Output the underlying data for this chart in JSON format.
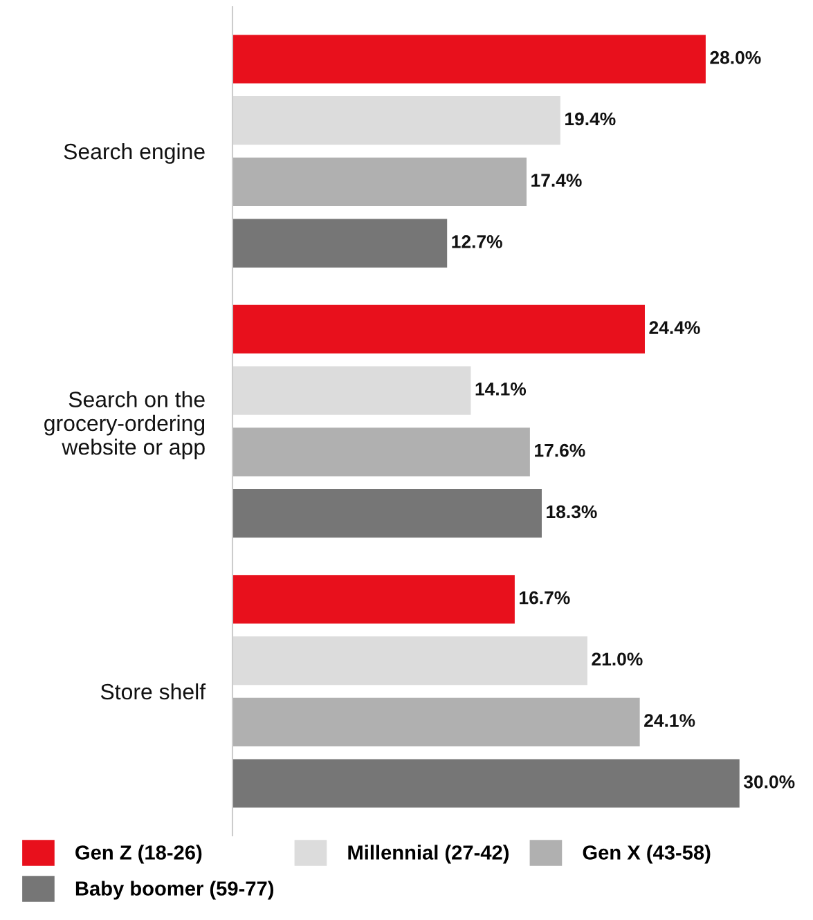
{
  "chart_data": {
    "type": "bar",
    "orientation": "horizontal",
    "categories": [
      "Search engine",
      "Search on the grocery-ordering website or app",
      "Store shelf"
    ],
    "series": [
      {
        "name": "Gen Z (18-26)",
        "color": "#e8101c",
        "values": [
          28.0,
          24.4,
          16.7
        ],
        "value_labels": [
          "28.0%",
          "24.4%",
          "16.7%"
        ]
      },
      {
        "name": "Millennial (27-42)",
        "color": "#dcdcdc",
        "values": [
          19.4,
          14.1,
          21.0
        ],
        "value_labels": [
          "19.4%",
          "14.1%",
          "21.0%"
        ]
      },
      {
        "name": "Gen X (43-58)",
        "color": "#b0b0b0",
        "values": [
          17.4,
          17.6,
          24.1
        ],
        "value_labels": [
          "17.4%",
          "17.6%",
          "24.1%"
        ]
      },
      {
        "name": "Baby boomer (59-77)",
        "color": "#767676",
        "values": [
          12.7,
          18.3,
          30.0
        ],
        "value_labels": [
          "12.7%",
          "18.3%",
          "30.0%"
        ]
      }
    ],
    "legend": "bottom"
  }
}
